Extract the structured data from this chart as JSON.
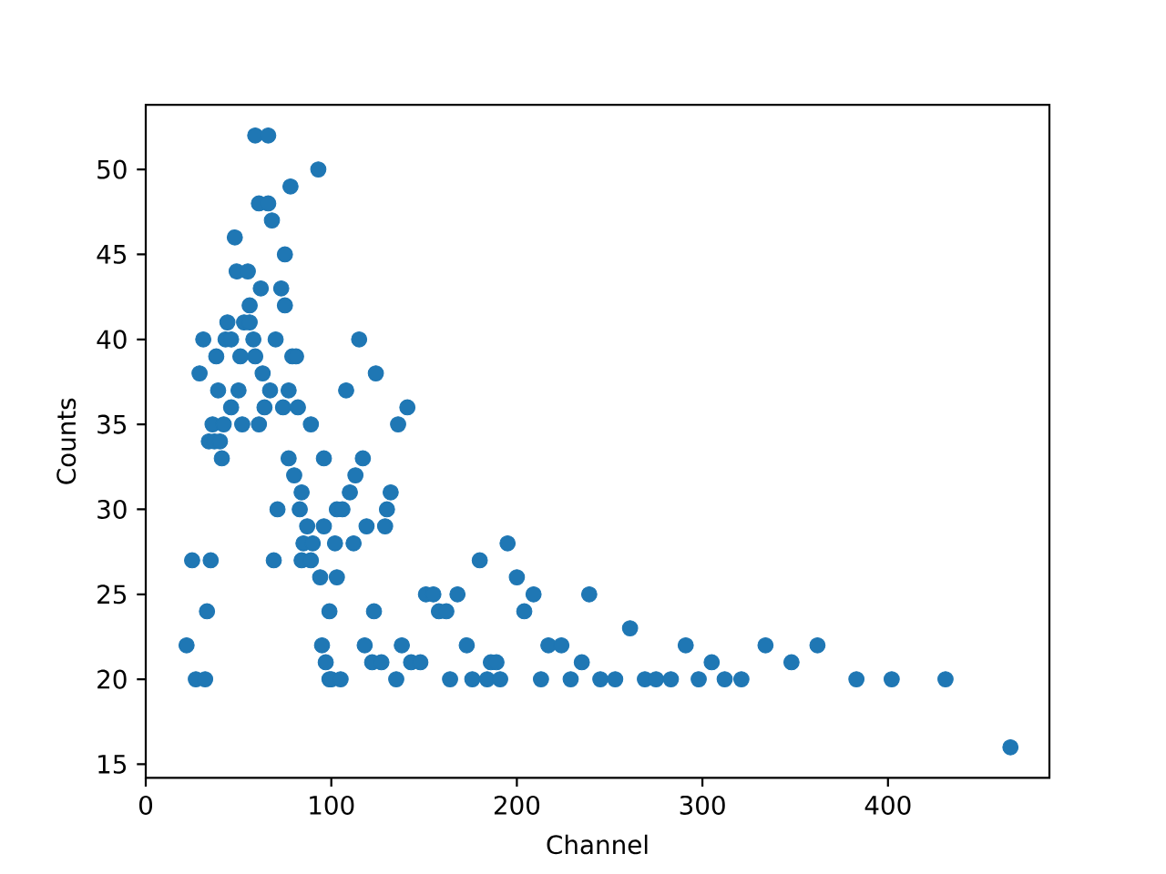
{
  "chart_data": {
    "type": "scatter",
    "xlabel": "Channel",
    "ylabel": "Counts",
    "marker": "circle",
    "xlim": [
      0,
      487
    ],
    "ylim": [
      14.2,
      53.8
    ],
    "xticks": [
      0,
      100,
      200,
      300,
      400
    ],
    "yticks": [
      15,
      20,
      25,
      30,
      35,
      40,
      45,
      50
    ],
    "series": [
      {
        "color": "#1f77b4",
        "x": [
          59,
          66,
          93,
          78,
          61,
          66,
          68,
          48,
          75,
          49,
          55,
          62,
          73,
          75,
          56,
          44,
          53,
          56,
          31,
          43,
          46,
          58,
          70,
          115,
          38,
          51,
          59,
          79,
          81,
          29,
          63,
          124,
          39,
          50,
          67,
          77,
          108,
          46,
          64,
          74,
          82,
          141,
          36,
          42,
          52,
          61,
          89,
          136,
          34,
          37,
          40,
          41,
          77,
          96,
          117,
          80,
          113,
          84,
          110,
          132,
          71,
          83,
          103,
          106,
          130,
          87,
          96,
          119,
          129,
          85,
          90,
          102,
          112,
          195,
          25,
          35,
          69,
          84,
          89,
          180,
          94,
          103,
          200,
          151,
          155,
          168,
          209,
          239,
          33,
          99,
          123,
          158,
          162,
          204,
          261,
          22,
          95,
          118,
          138,
          173,
          217,
          224,
          291,
          334,
          362,
          97,
          122,
          127,
          143,
          148,
          186,
          189,
          235,
          305,
          348,
          27,
          32,
          99,
          100,
          105,
          135,
          164,
          176,
          184,
          191,
          213,
          229,
          245,
          253,
          269,
          275,
          283,
          298,
          312,
          321,
          383,
          402,
          431,
          466
        ],
        "values": [
          52,
          52,
          50,
          49,
          48,
          48,
          47,
          46,
          45,
          44,
          44,
          43,
          43,
          42,
          42,
          41,
          41,
          41,
          40,
          40,
          40,
          40,
          40,
          40,
          39,
          39,
          39,
          39,
          39,
          38,
          38,
          38,
          37,
          37,
          37,
          37,
          37,
          36,
          36,
          36,
          36,
          36,
          35,
          35,
          35,
          35,
          35,
          35,
          34,
          34,
          34,
          33,
          33,
          33,
          33,
          32,
          32,
          31,
          31,
          31,
          30,
          30,
          30,
          30,
          30,
          29,
          29,
          29,
          29,
          28,
          28,
          28,
          28,
          28,
          27,
          27,
          27,
          27,
          27,
          27,
          26,
          26,
          26,
          25,
          25,
          25,
          25,
          25,
          24,
          24,
          24,
          24,
          24,
          24,
          23,
          22,
          22,
          22,
          22,
          22,
          22,
          22,
          22,
          22,
          22,
          21,
          21,
          21,
          21,
          21,
          21,
          21,
          21,
          21,
          21,
          20,
          20,
          20,
          20,
          20,
          20,
          20,
          20,
          20,
          20,
          20,
          20,
          20,
          20,
          20,
          20,
          20,
          20,
          20,
          20,
          20,
          20,
          20,
          16
        ]
      }
    ]
  }
}
